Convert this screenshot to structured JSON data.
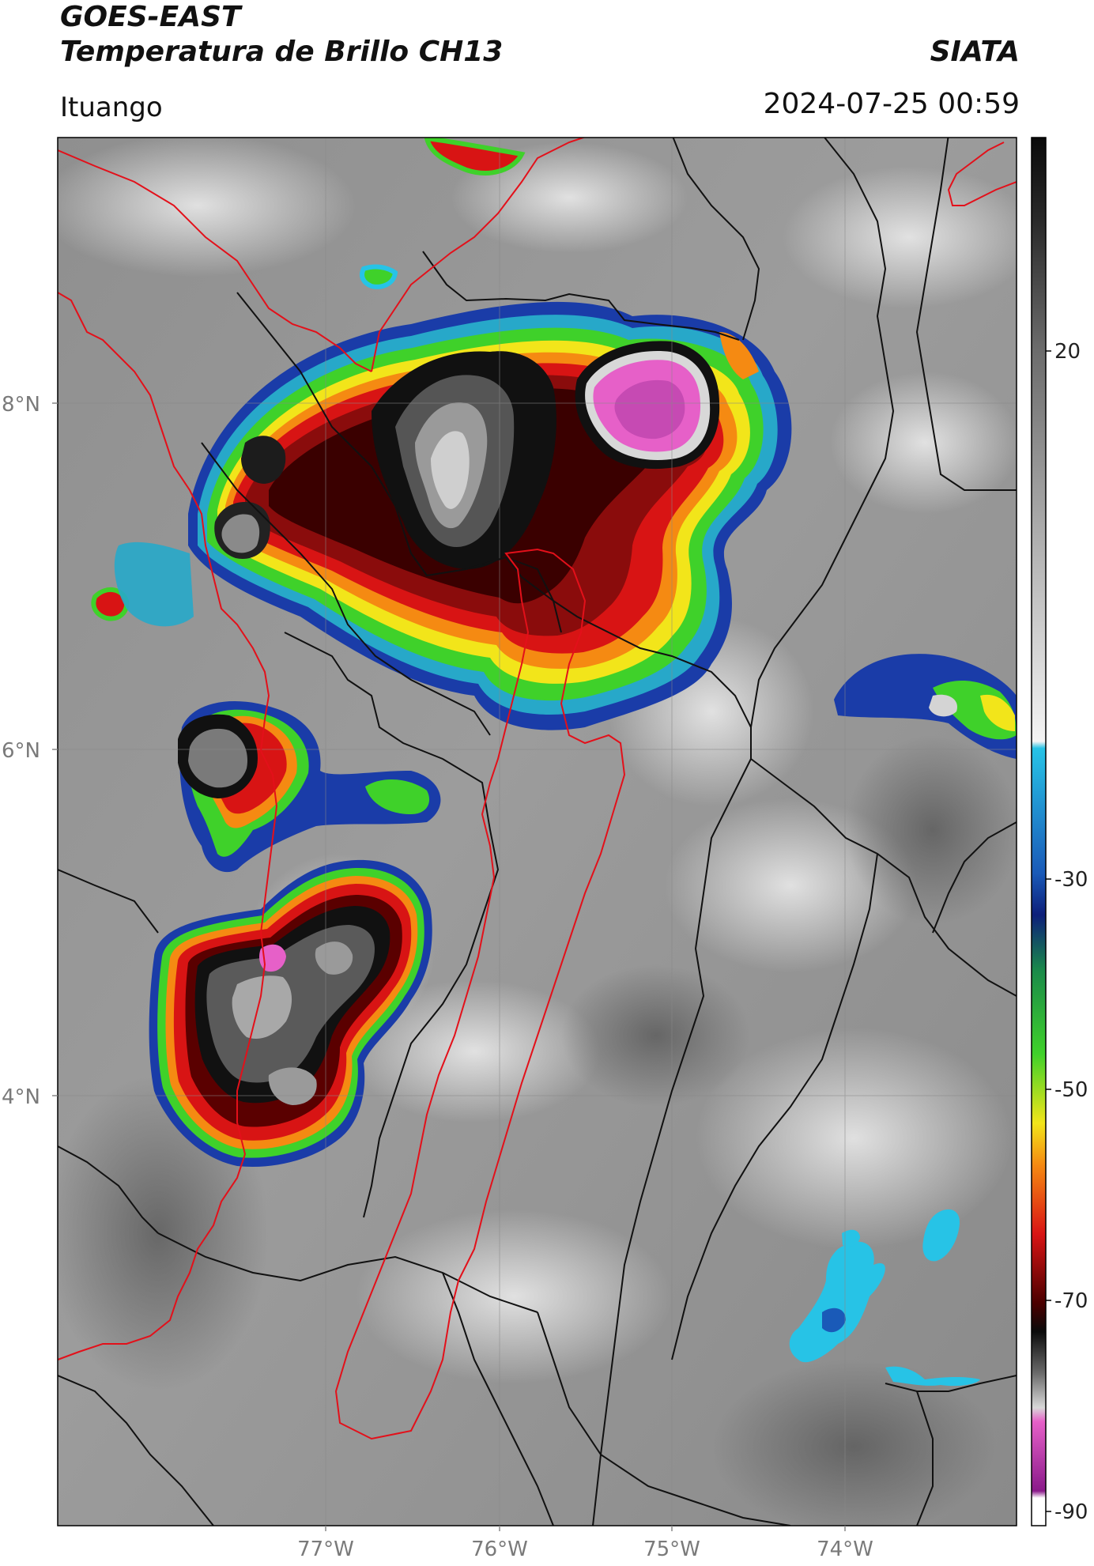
{
  "header": {
    "title_line1": "GOES-EAST",
    "title_line2": "Temperatura de Brillo CH13",
    "organization": "SIATA",
    "region": "Ituango",
    "timestamp": "2024-07-25 00:59"
  },
  "map": {
    "lat_labels": [
      "8°N",
      "6°N",
      "4°N"
    ],
    "lon_labels": [
      "77°W",
      "76°W",
      "75°W",
      "74°W"
    ],
    "colors": {
      "coastline": "#e3101a",
      "borders": "#111111",
      "gridlines": "#888888"
    }
  },
  "colorbar": {
    "tick_labels": [
      "20",
      "-30",
      "-50",
      "-70",
      "-90"
    ],
    "colors": {
      "cyan": "#27c3e6",
      "blue": "#1a3ca8",
      "green": "#3fd12a",
      "yellow": "#f2e51a",
      "orange": "#f58a12",
      "red": "#d81414",
      "dark_red": "#4a0000",
      "black": "#0a0a0a",
      "pink": "#e660c8",
      "purple": "#8a1a8a"
    }
  }
}
